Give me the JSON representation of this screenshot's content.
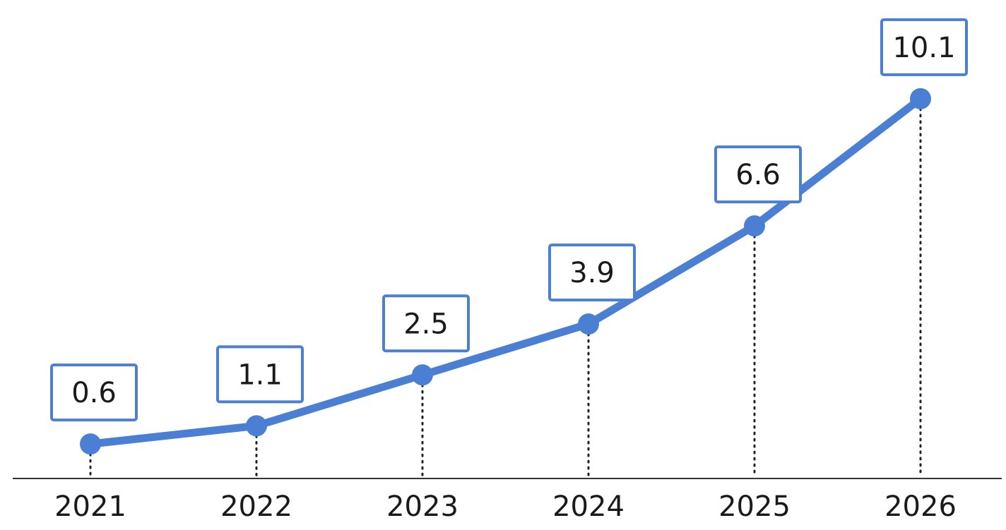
{
  "chart_data": {
    "type": "line",
    "categories": [
      "2021",
      "2022",
      "2023",
      "2024",
      "2025",
      "2026"
    ],
    "values": [
      0.6,
      1.1,
      2.5,
      3.9,
      6.6,
      10.1
    ],
    "data_labels": [
      "0.6",
      "1.1",
      "2.5",
      "3.9",
      "6.6",
      "10.1"
    ],
    "title": "",
    "xlabel": "",
    "ylabel": "",
    "grid": false,
    "legend": "none",
    "y_axis_visible": false,
    "colors": {
      "series": "#4a7fd4",
      "label_border": "#4a7fd4",
      "axis": "#333333",
      "text": "#1a1a1a"
    }
  }
}
